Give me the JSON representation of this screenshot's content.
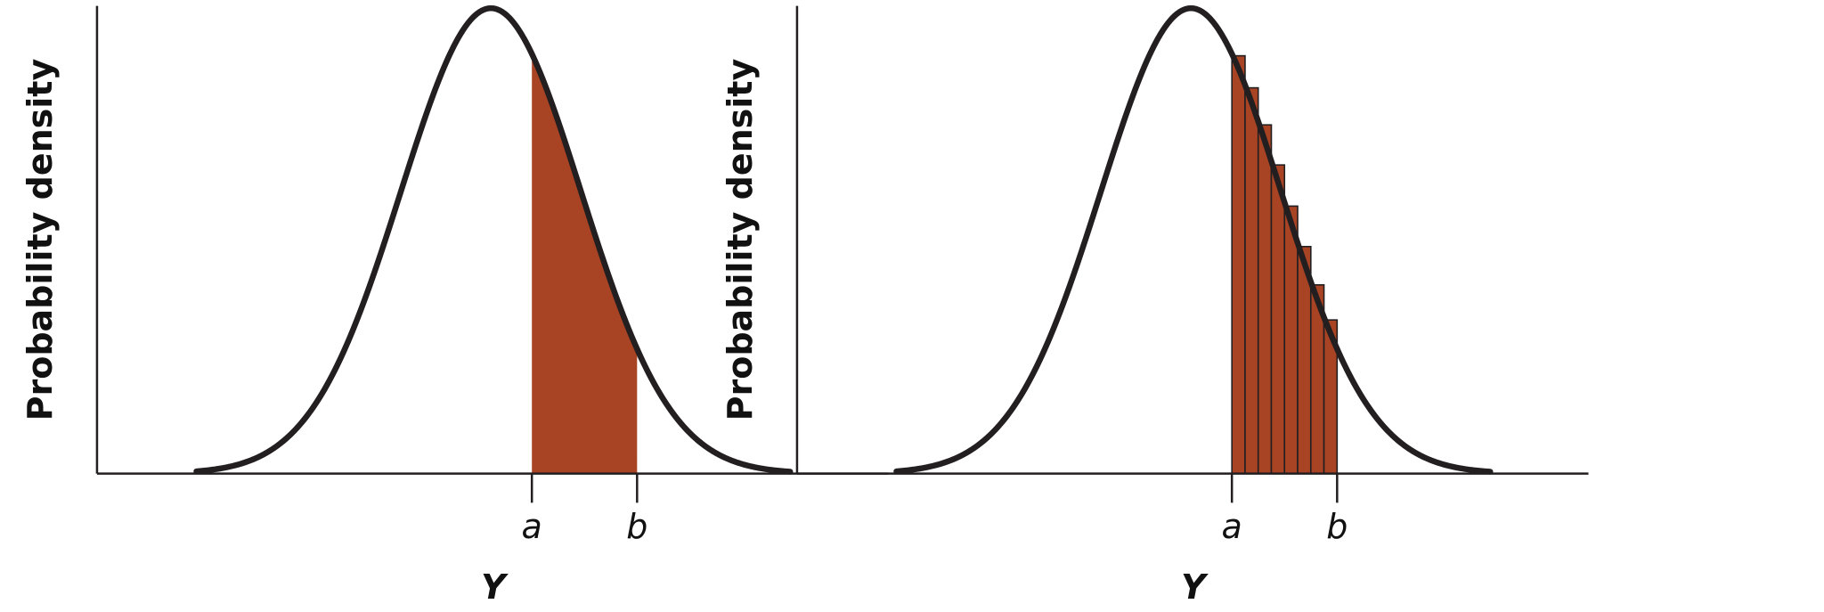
{
  "chart_data": [
    {
      "type": "area",
      "ylabel": "Probability density",
      "xlabel": "Y",
      "tick_labels": [
        "a",
        "b"
      ],
      "curve": "normal density",
      "shaded_region": {
        "from": "a",
        "to": "b",
        "style": "solid"
      },
      "color": "#A84424"
    },
    {
      "type": "bar",
      "ylabel": "Probability density",
      "xlabel": "Y",
      "tick_labels": [
        "a",
        "b"
      ],
      "curve": "normal density",
      "shaded_region": {
        "from": "a",
        "to": "b",
        "style": "rectangles",
        "count": 8
      },
      "color": "#A84424"
    }
  ]
}
